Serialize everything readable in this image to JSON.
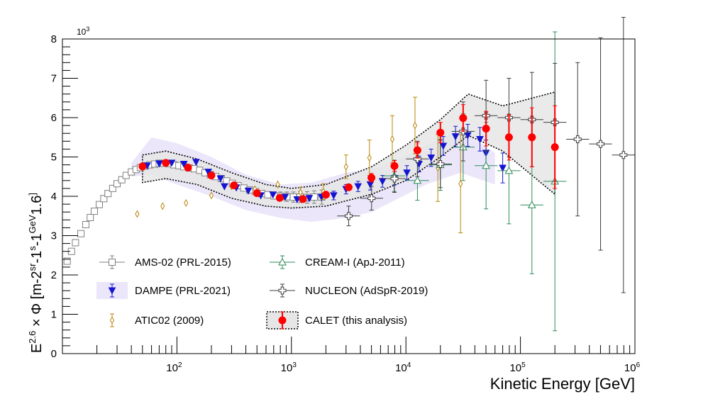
{
  "chart_data": {
    "type": "scatter",
    "xlabel": "Kinetic Energy [GeV]",
    "ylabel_parts": [
      "E",
      "2.6",
      " × Φ [m",
      "-2",
      "sr",
      "-1",
      "s",
      "-1",
      "GeV",
      "1.6",
      "]"
    ],
    "y_scale_label": "10",
    "y_scale_exp": "3",
    "x_scale": "log",
    "xlim": [
      10,
      1000000
    ],
    "ylim": [
      0,
      8
    ],
    "x_tick_labels": [
      {
        "base": "10",
        "exp": "2",
        "value": 100
      },
      {
        "base": "10",
        "exp": "3",
        "value": 1000
      },
      {
        "base": "10",
        "exp": "4",
        "value": 10000
      },
      {
        "base": "10",
        "exp": "5",
        "value": 100000
      },
      {
        "base": "10",
        "exp": "6",
        "value": 1000000
      }
    ],
    "y_tick_labels": [
      "0",
      "1",
      "2",
      "3",
      "4",
      "5",
      "6",
      "7",
      "8"
    ],
    "bands": [
      {
        "name": "DAMPE systematic band",
        "color": "#ebe6fa",
        "x": [
          40,
          60,
          100,
          200,
          400,
          800,
          1500,
          3000,
          5000,
          8000,
          15000,
          30000,
          60000
        ],
        "upper": [
          4.85,
          5.5,
          5.35,
          5.0,
          4.55,
          4.3,
          4.35,
          4.6,
          4.7,
          4.9,
          5.3,
          5.7,
          5.1
        ],
        "lower": [
          4.5,
          4.55,
          4.3,
          4.0,
          3.65,
          3.45,
          3.35,
          3.45,
          3.6,
          3.9,
          4.3,
          4.6,
          4.3
        ]
      },
      {
        "name": "CALET systematic band",
        "color": "#e6e6e6",
        "x": [
          50,
          80,
          150,
          300,
          600,
          1000,
          2000,
          5000,
          10000,
          20000,
          35000,
          70000,
          200000
        ],
        "upper": [
          5.05,
          5.15,
          4.95,
          4.6,
          4.3,
          4.2,
          4.3,
          4.75,
          5.3,
          5.95,
          6.6,
          6.3,
          6.65
        ],
        "lower": [
          4.35,
          4.45,
          4.3,
          3.95,
          3.75,
          3.7,
          3.75,
          4.05,
          4.4,
          5.0,
          5.55,
          5.15,
          4.05
        ]
      }
    ],
    "series": [
      {
        "name": "AMS-02 (PRL-2015)",
        "marker": "open-square",
        "color": "#7f7f7f",
        "points": [
          {
            "x": 11,
            "y": 2.35,
            "err": 0.02
          },
          {
            "x": 12,
            "y": 2.6,
            "err": 0.02
          },
          {
            "x": 13,
            "y": 2.82,
            "err": 0.02
          },
          {
            "x": 14.5,
            "y": 3.05,
            "err": 0.02
          },
          {
            "x": 16,
            "y": 3.28,
            "err": 0.02
          },
          {
            "x": 17.5,
            "y": 3.46,
            "err": 0.02
          },
          {
            "x": 19,
            "y": 3.62,
            "err": 0.02
          },
          {
            "x": 21,
            "y": 3.79,
            "err": 0.02
          },
          {
            "x": 23,
            "y": 3.94,
            "err": 0.02
          },
          {
            "x": 25,
            "y": 4.07,
            "err": 0.02
          },
          {
            "x": 27.5,
            "y": 4.2,
            "err": 0.02
          },
          {
            "x": 30,
            "y": 4.32,
            "err": 0.02
          },
          {
            "x": 33,
            "y": 4.42,
            "err": 0.02
          },
          {
            "x": 36,
            "y": 4.53,
            "err": 0.02
          },
          {
            "x": 40,
            "y": 4.62,
            "err": 0.02
          },
          {
            "x": 44,
            "y": 4.68,
            "err": 0.02
          },
          {
            "x": 48,
            "y": 4.73,
            "err": 0.02
          },
          {
            "x": 53,
            "y": 4.77,
            "err": 0.02
          },
          {
            "x": 58,
            "y": 4.8,
            "err": 0.02
          },
          {
            "x": 64,
            "y": 4.82,
            "err": 0.03
          },
          {
            "x": 70,
            "y": 4.84,
            "err": 0.03
          },
          {
            "x": 77,
            "y": 4.84,
            "err": 0.03
          },
          {
            "x": 85,
            "y": 4.83,
            "err": 0.03
          },
          {
            "x": 94,
            "y": 4.8,
            "err": 0.03
          },
          {
            "x": 104,
            "y": 4.78,
            "err": 0.03
          },
          {
            "x": 115,
            "y": 4.75,
            "err": 0.03
          },
          {
            "x": 128,
            "y": 4.72,
            "err": 0.04
          },
          {
            "x": 142,
            "y": 4.7,
            "err": 0.04
          },
          {
            "x": 158,
            "y": 4.66,
            "err": 0.04
          },
          {
            "x": 176,
            "y": 4.6,
            "err": 0.04
          },
          {
            "x": 196,
            "y": 4.55,
            "err": 0.05
          },
          {
            "x": 218,
            "y": 4.5,
            "err": 0.05
          },
          {
            "x": 244,
            "y": 4.45,
            "err": 0.05
          },
          {
            "x": 272,
            "y": 4.39,
            "err": 0.06
          },
          {
            "x": 305,
            "y": 4.33,
            "err": 0.06
          },
          {
            "x": 342,
            "y": 4.27,
            "err": 0.06
          },
          {
            "x": 384,
            "y": 4.21,
            "err": 0.07
          },
          {
            "x": 432,
            "y": 4.16,
            "err": 0.07
          },
          {
            "x": 487,
            "y": 4.12,
            "err": 0.08
          },
          {
            "x": 550,
            "y": 4.07,
            "err": 0.08
          },
          {
            "x": 622,
            "y": 4.04,
            "err": 0.09
          },
          {
            "x": 705,
            "y": 4.01,
            "err": 0.1
          },
          {
            "x": 800,
            "y": 4.0,
            "err": 0.11
          },
          {
            "x": 911,
            "y": 3.99,
            "err": 0.12
          },
          {
            "x": 1040,
            "y": 3.98,
            "err": 0.13
          },
          {
            "x": 1190,
            "y": 3.98,
            "err": 0.14
          },
          {
            "x": 1370,
            "y": 3.97,
            "err": 0.15
          },
          {
            "x": 1580,
            "y": 3.98,
            "err": 0.16
          },
          {
            "x": 1840,
            "y": 3.98,
            "err": 0.18
          }
        ]
      },
      {
        "name": "DAMPE (PRL-2021)",
        "marker": "filled-triangle-down",
        "color": "#1414d2",
        "points": [
          {
            "x": 55,
            "y": 4.78,
            "err": 0.03
          },
          {
            "x": 70,
            "y": 4.83,
            "err": 0.03
          },
          {
            "x": 90,
            "y": 4.85,
            "err": 0.03
          },
          {
            "x": 115,
            "y": 4.82,
            "err": 0.03
          },
          {
            "x": 147,
            "y": 4.87,
            "err": 0.03
          },
          {
            "x": 188,
            "y": 4.62,
            "err": 0.04
          },
          {
            "x": 240,
            "y": 4.45,
            "err": 0.04
          },
          {
            "x": 260,
            "y": 4.25,
            "err": 0.04
          },
          {
            "x": 330,
            "y": 4.22,
            "err": 0.05
          },
          {
            "x": 420,
            "y": 4.14,
            "err": 0.05
          },
          {
            "x": 540,
            "y": 4.02,
            "err": 0.06
          },
          {
            "x": 690,
            "y": 4.04,
            "err": 0.06
          },
          {
            "x": 880,
            "y": 3.98,
            "err": 0.07
          },
          {
            "x": 1120,
            "y": 3.92,
            "err": 0.08
          },
          {
            "x": 1430,
            "y": 3.95,
            "err": 0.09
          },
          {
            "x": 1830,
            "y": 3.98,
            "err": 0.1
          },
          {
            "x": 2340,
            "y": 4.02,
            "err": 0.11
          },
          {
            "x": 3000,
            "y": 4.18,
            "err": 0.12
          },
          {
            "x": 3820,
            "y": 4.25,
            "err": 0.13
          },
          {
            "x": 4880,
            "y": 4.3,
            "err": 0.14
          },
          {
            "x": 6240,
            "y": 4.38,
            "err": 0.15
          },
          {
            "x": 7970,
            "y": 4.46,
            "err": 0.17
          },
          {
            "x": 10200,
            "y": 4.6,
            "err": 0.18
          },
          {
            "x": 13000,
            "y": 4.82,
            "err": 0.2
          },
          {
            "x": 16600,
            "y": 4.98,
            "err": 0.22
          },
          {
            "x": 21200,
            "y": 5.28,
            "err": 0.24
          },
          {
            "x": 27100,
            "y": 5.52,
            "err": 0.26
          },
          {
            "x": 34700,
            "y": 5.55,
            "err": 0.28
          },
          {
            "x": 44300,
            "y": 5.45,
            "err": 0.3
          },
          {
            "x": 50000,
            "y": 5.1,
            "err": 0.33
          },
          {
            "x": 70000,
            "y": 4.72,
            "err": 0.38
          }
        ]
      },
      {
        "name": "ATIC02 (2009)",
        "marker": "open-diamond",
        "color": "#b8860b",
        "points": [
          {
            "x": 45,
            "y": 3.55,
            "err": 0.03
          },
          {
            "x": 75,
            "y": 3.75,
            "err": 0.03
          },
          {
            "x": 120,
            "y": 3.83,
            "err": 0.04
          },
          {
            "x": 200,
            "y": 4.02,
            "err": 0.05
          },
          {
            "x": 300,
            "y": 4.25,
            "err": 0.06
          },
          {
            "x": 480,
            "y": 4.18,
            "err": 0.08
          },
          {
            "x": 760,
            "y": 4.3,
            "err": 0.1
          },
          {
            "x": 1200,
            "y": 4.1,
            "err": 0.13
          },
          {
            "x": 1900,
            "y": 4.12,
            "err": 0.2
          },
          {
            "x": 3000,
            "y": 4.75,
            "err": 0.3
          },
          {
            "x": 4800,
            "y": 4.98,
            "err": 0.45
          },
          {
            "x": 7600,
            "y": 5.45,
            "err": 0.6
          },
          {
            "x": 12000,
            "y": 5.8,
            "err": 0.72
          },
          {
            "x": 19000,
            "y": 4.72,
            "err": 0.85
          },
          {
            "x": 30000,
            "y": 4.32,
            "err": 1.25
          }
        ]
      },
      {
        "name": "CREAM-I (ApJ-2011)",
        "marker": "open-triangle-up",
        "color": "#2e8b57",
        "points": [
          {
            "x": 7900,
            "y": 4.52,
            "err": 0.4
          },
          {
            "x": 12600,
            "y": 4.4,
            "err": 0.5
          },
          {
            "x": 20000,
            "y": 4.8,
            "err": 0.65
          },
          {
            "x": 31600,
            "y": 5.25,
            "err": 0.85
          },
          {
            "x": 50100,
            "y": 4.78,
            "err": 1.1
          },
          {
            "x": 79400,
            "y": 4.65,
            "err": 1.35
          },
          {
            "x": 126000,
            "y": 3.78,
            "err": 1.75
          },
          {
            "x": 200000,
            "y": 4.38,
            "err": 3.8
          }
        ]
      },
      {
        "name": "NUCLEON (AdSpR-2019)",
        "marker": "open-cross",
        "color": "#3c3c3c",
        "points": [
          {
            "x": 3160,
            "y": 3.5,
            "err": 0.25
          },
          {
            "x": 5010,
            "y": 3.95,
            "err": 0.3
          },
          {
            "x": 7940,
            "y": 4.45,
            "err": 0.35
          },
          {
            "x": 12600,
            "y": 4.95,
            "err": 0.45
          },
          {
            "x": 20000,
            "y": 4.82,
            "err": 0.6
          },
          {
            "x": 31600,
            "y": 5.65,
            "err": 0.75
          },
          {
            "x": 50100,
            "y": 6.05,
            "err": 0.9
          },
          {
            "x": 79400,
            "y": 6.0,
            "err": 1.0
          },
          {
            "x": 126000,
            "y": 5.95,
            "err": 1.2
          },
          {
            "x": 200000,
            "y": 5.88,
            "err": 1.5
          },
          {
            "x": 316000,
            "y": 5.45,
            "err": 1.95
          },
          {
            "x": 501000,
            "y": 5.33,
            "err": 2.7
          },
          {
            "x": 794000,
            "y": 5.05,
            "err": 3.5
          }
        ]
      },
      {
        "name": "CALET (this analysis)",
        "marker": "filled-circle",
        "color": "#ff0000",
        "points": [
          {
            "x": 50,
            "y": 4.76,
            "err": 0.04
          },
          {
            "x": 80,
            "y": 4.85,
            "err": 0.04
          },
          {
            "x": 125,
            "y": 4.73,
            "err": 0.04
          },
          {
            "x": 200,
            "y": 4.53,
            "err": 0.04
          },
          {
            "x": 315,
            "y": 4.28,
            "err": 0.04
          },
          {
            "x": 500,
            "y": 4.08,
            "err": 0.05
          },
          {
            "x": 790,
            "y": 3.96,
            "err": 0.05
          },
          {
            "x": 1260,
            "y": 3.93,
            "err": 0.06
          },
          {
            "x": 2000,
            "y": 4.04,
            "err": 0.07
          },
          {
            "x": 3160,
            "y": 4.23,
            "err": 0.09
          },
          {
            "x": 5000,
            "y": 4.47,
            "err": 0.11
          },
          {
            "x": 7940,
            "y": 4.77,
            "err": 0.14
          },
          {
            "x": 12600,
            "y": 5.17,
            "err": 0.2
          },
          {
            "x": 20000,
            "y": 5.62,
            "err": 0.26
          },
          {
            "x": 31600,
            "y": 5.99,
            "err": 0.34
          },
          {
            "x": 50100,
            "y": 5.72,
            "err": 0.44
          },
          {
            "x": 79400,
            "y": 5.5,
            "err": 0.58
          },
          {
            "x": 126000,
            "y": 5.5,
            "err": 0.75
          },
          {
            "x": 200000,
            "y": 5.25,
            "err": 1.05
          }
        ]
      }
    ],
    "legend": {
      "placement": "bottom-left",
      "entries": [
        {
          "label": "AMS-02 (PRL-2015)",
          "marker": "open-square"
        },
        {
          "label": "CREAM-I (ApJ-2011)",
          "marker": "open-triangle-up"
        },
        {
          "label": "DAMPE (PRL-2021)",
          "marker": "filled-triangle-down"
        },
        {
          "label": "NUCLEON (AdSpR-2019)",
          "marker": "open-cross"
        },
        {
          "label": "ATIC02 (2009)",
          "marker": "open-diamond"
        },
        {
          "label": "CALET (this analysis)",
          "marker": "filled-circle"
        }
      ]
    }
  }
}
